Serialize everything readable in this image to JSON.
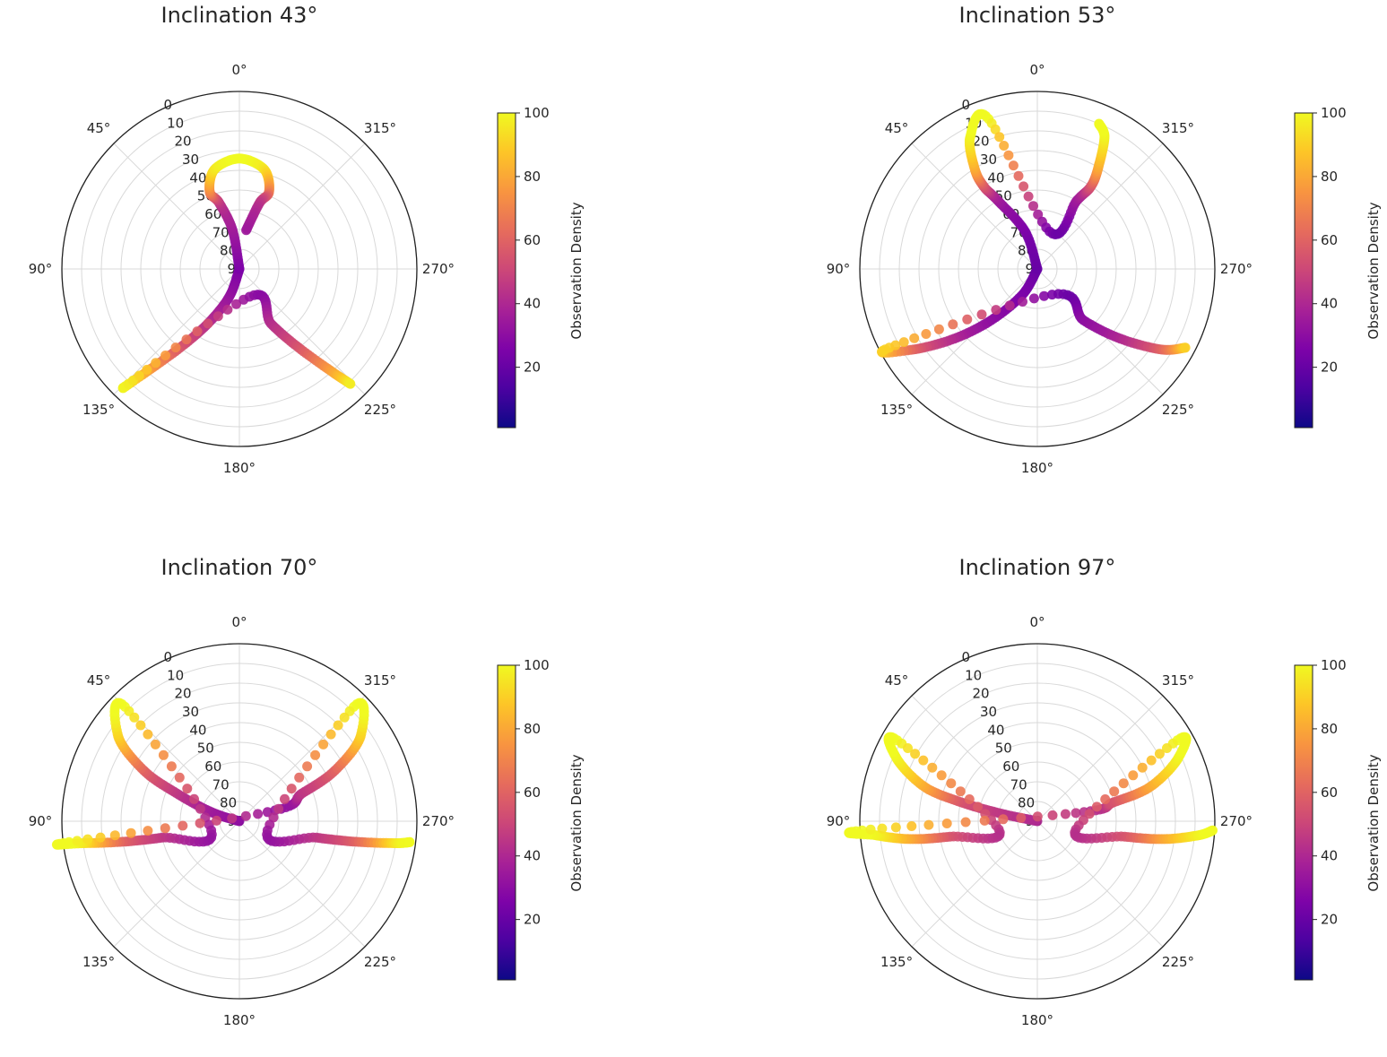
{
  "figure": {
    "colormap": "plasma",
    "panel_titles": [
      "Inclination 43°",
      "Inclination 53°",
      "Inclination 70°",
      "Inclination 97°"
    ]
  },
  "chart_data": [
    {
      "type": "scatter",
      "projection": "polar",
      "title": "Inclination 43°",
      "theta_zero_location": "top",
      "theta_direction": "counterclockwise",
      "theta_ticks": [
        "0°",
        "45°",
        "90°",
        "135°",
        "180°",
        "225°",
        "270°",
        "315°"
      ],
      "r_ticks": [
        "0",
        "10",
        "20",
        "30",
        "40",
        "50",
        "60",
        "70",
        "80",
        "90"
      ],
      "r_axis": "elevation, 90 at center, 0 at edge",
      "colorbar": {
        "label": "Observation Density",
        "ticks": [
          "20",
          "40",
          "60",
          "80",
          "100"
        ],
        "range": [
          1,
          100
        ],
        "colormap": "plasma"
      },
      "grid": true,
      "series": [
        {
          "points": [
            {
              "az": 180,
              "el": 90,
              "c": 25
            },
            {
              "az": 160,
              "el": 75,
              "c": 32
            },
            {
              "az": 150,
              "el": 58,
              "c": 42
            },
            {
              "az": 143,
              "el": 40,
              "c": 55
            },
            {
              "az": 138,
              "el": 20,
              "c": 78
            },
            {
              "az": 136,
              "el": 9,
              "c": 97
            },
            {
              "az": 200,
              "el": 75,
              "c": 32
            },
            {
              "az": 210,
              "el": 58,
              "c": 42
            },
            {
              "az": 217,
              "el": 40,
              "c": 55
            },
            {
              "az": 222,
              "el": 20,
              "c": 78
            },
            {
              "az": 224,
              "el": 9,
              "c": 97
            },
            {
              "az": 0,
              "el": 90,
              "c": 25
            },
            {
              "az": 10,
              "el": 70,
              "c": 35
            },
            {
              "az": 17,
              "el": 55,
              "c": 45
            },
            {
              "az": 21,
              "el": 48,
              "c": 70
            },
            {
              "az": 14,
              "el": 38,
              "c": 95
            },
            {
              "az": 0,
              "el": 34,
              "c": 100
            },
            {
              "az": 346,
              "el": 38,
              "c": 95
            },
            {
              "az": 339,
              "el": 48,
              "c": 70
            },
            {
              "az": 343,
              "el": 55,
              "c": 45
            },
            {
              "az": 350,
              "el": 70,
              "c": 35
            }
          ]
        }
      ]
    },
    {
      "type": "scatter",
      "projection": "polar",
      "title": "Inclination 53°",
      "theta_zero_location": "top",
      "theta_direction": "counterclockwise",
      "theta_ticks": [
        "0°",
        "45°",
        "90°",
        "135°",
        "180°",
        "225°",
        "270°",
        "315°"
      ],
      "r_ticks": [
        "0",
        "10",
        "20",
        "30",
        "40",
        "50",
        "60",
        "70",
        "80",
        "90"
      ],
      "r_axis": "elevation, 90 at center, 0 at edge",
      "colorbar": {
        "label": "Observation Density",
        "ticks": [
          "20",
          "40",
          "60",
          "80",
          "100"
        ],
        "range": [
          1,
          100
        ],
        "colormap": "plasma"
      },
      "grid": true,
      "series": [
        {
          "points": [
            {
              "az": 180,
              "el": 90,
              "c": 20
            },
            {
              "az": 150,
              "el": 75,
              "c": 25
            },
            {
              "az": 138,
              "el": 55,
              "c": 30
            },
            {
              "az": 130,
              "el": 35,
              "c": 40
            },
            {
              "az": 123,
              "el": 15,
              "c": 60
            },
            {
              "az": 118,
              "el": 5,
              "c": 90
            },
            {
              "az": 210,
              "el": 75,
              "c": 25
            },
            {
              "az": 222,
              "el": 55,
              "c": 30
            },
            {
              "az": 230,
              "el": 35,
              "c": 40
            },
            {
              "az": 237,
              "el": 15,
              "c": 60
            },
            {
              "az": 242,
              "el": 5,
              "c": 90
            },
            {
              "az": 0,
              "el": 90,
              "c": 20
            },
            {
              "az": 18,
              "el": 70,
              "c": 25
            },
            {
              "az": 30,
              "el": 50,
              "c": 35
            },
            {
              "az": 33,
              "el": 40,
              "c": 55
            },
            {
              "az": 32,
              "el": 30,
              "c": 80
            },
            {
              "az": 27,
              "el": 15,
              "c": 98
            },
            {
              "az": 18,
              "el": 10,
              "c": 100
            },
            {
              "az": 342,
              "el": 70,
              "c": 25
            },
            {
              "az": 330,
              "el": 50,
              "c": 35
            },
            {
              "az": 327,
              "el": 40,
              "c": 55
            },
            {
              "az": 329,
              "el": 30,
              "c": 80
            },
            {
              "az": 333,
              "el": 15,
              "c": 98
            },
            {
              "az": 337,
              "el": 10,
              "c": 100
            }
          ]
        }
      ]
    },
    {
      "type": "scatter",
      "projection": "polar",
      "title": "Inclination 70°",
      "theta_zero_location": "top",
      "theta_direction": "counterclockwise",
      "theta_ticks": [
        "0°",
        "45°",
        "90°",
        "135°",
        "180°",
        "225°",
        "270°",
        "315°"
      ],
      "r_ticks": [
        "0",
        "10",
        "20",
        "30",
        "40",
        "50",
        "60",
        "70",
        "80",
        "90"
      ],
      "r_axis": "elevation, 90 at center, 0 at edge",
      "colorbar": {
        "label": "Observation Density",
        "ticks": [
          "20",
          "40",
          "60",
          "80",
          "100"
        ],
        "range": [
          1,
          100
        ],
        "colormap": "plasma"
      },
      "grid": true,
      "series": [
        {
          "points": [
            {
              "az": 90,
              "el": 90,
              "c": 30
            },
            {
              "az": 72,
              "el": 75,
              "c": 35
            },
            {
              "az": 66,
              "el": 55,
              "c": 45
            },
            {
              "az": 62,
              "el": 35,
              "c": 60
            },
            {
              "az": 55,
              "el": 15,
              "c": 90
            },
            {
              "az": 45,
              "el": 8,
              "c": 100
            },
            {
              "az": 108,
              "el": 75,
              "c": 35
            },
            {
              "az": 102,
              "el": 50,
              "c": 45
            },
            {
              "az": 100,
              "el": 30,
              "c": 60
            },
            {
              "az": 98,
              "el": 10,
              "c": 95
            },
            {
              "az": 97,
              "el": 3,
              "c": 100
            },
            {
              "az": 288,
              "el": 75,
              "c": 35
            },
            {
              "az": 294,
              "el": 55,
              "c": 45
            },
            {
              "az": 298,
              "el": 35,
              "c": 60
            },
            {
              "az": 305,
              "el": 15,
              "c": 90
            },
            {
              "az": 315,
              "el": 8,
              "c": 100
            },
            {
              "az": 252,
              "el": 75,
              "c": 35
            },
            {
              "az": 258,
              "el": 50,
              "c": 45
            },
            {
              "az": 260,
              "el": 30,
              "c": 60
            },
            {
              "az": 262,
              "el": 10,
              "c": 95
            },
            {
              "az": 263,
              "el": 3,
              "c": 100
            }
          ]
        }
      ]
    },
    {
      "type": "scatter",
      "projection": "polar",
      "title": "Inclination 97°",
      "theta_zero_location": "top",
      "theta_direction": "counterclockwise",
      "theta_ticks": [
        "0°",
        "45°",
        "90°",
        "135°",
        "180°",
        "225°",
        "270°",
        "315°"
      ],
      "r_ticks": [
        "0",
        "10",
        "20",
        "30",
        "40",
        "50",
        "60",
        "70",
        "80",
        "90"
      ],
      "r_axis": "elevation, 90 at center, 0 at edge",
      "colorbar": {
        "label": "Observation Density",
        "ticks": [
          "20",
          "40",
          "60",
          "80",
          "100"
        ],
        "range": [
          1,
          100
        ],
        "colormap": "plasma"
      },
      "grid": true,
      "series": [
        {
          "points": [
            {
              "az": 90,
              "el": 90,
              "c": 40
            },
            {
              "az": 78,
              "el": 70,
              "c": 45
            },
            {
              "az": 76,
              "el": 50,
              "c": 55
            },
            {
              "az": 73,
              "el": 30,
              "c": 80
            },
            {
              "az": 66,
              "el": 12,
              "c": 98
            },
            {
              "az": 60,
              "el": 8,
              "c": 100
            },
            {
              "az": 102,
              "el": 70,
              "c": 45
            },
            {
              "az": 100,
              "el": 45,
              "c": 55
            },
            {
              "az": 98,
              "el": 25,
              "c": 80
            },
            {
              "az": 95,
              "el": 8,
              "c": 98
            },
            {
              "az": 93,
              "el": 1,
              "c": 100
            },
            {
              "az": 282,
              "el": 70,
              "c": 45
            },
            {
              "az": 284,
              "el": 50,
              "c": 55
            },
            {
              "az": 287,
              "el": 30,
              "c": 80
            },
            {
              "az": 294,
              "el": 12,
              "c": 98
            },
            {
              "az": 300,
              "el": 8,
              "c": 100
            },
            {
              "az": 258,
              "el": 70,
              "c": 45
            },
            {
              "az": 260,
              "el": 45,
              "c": 55
            },
            {
              "az": 262,
              "el": 25,
              "c": 80
            },
            {
              "az": 265,
              "el": 8,
              "c": 98
            },
            {
              "az": 267,
              "el": 1,
              "c": 100
            }
          ]
        }
      ]
    }
  ]
}
